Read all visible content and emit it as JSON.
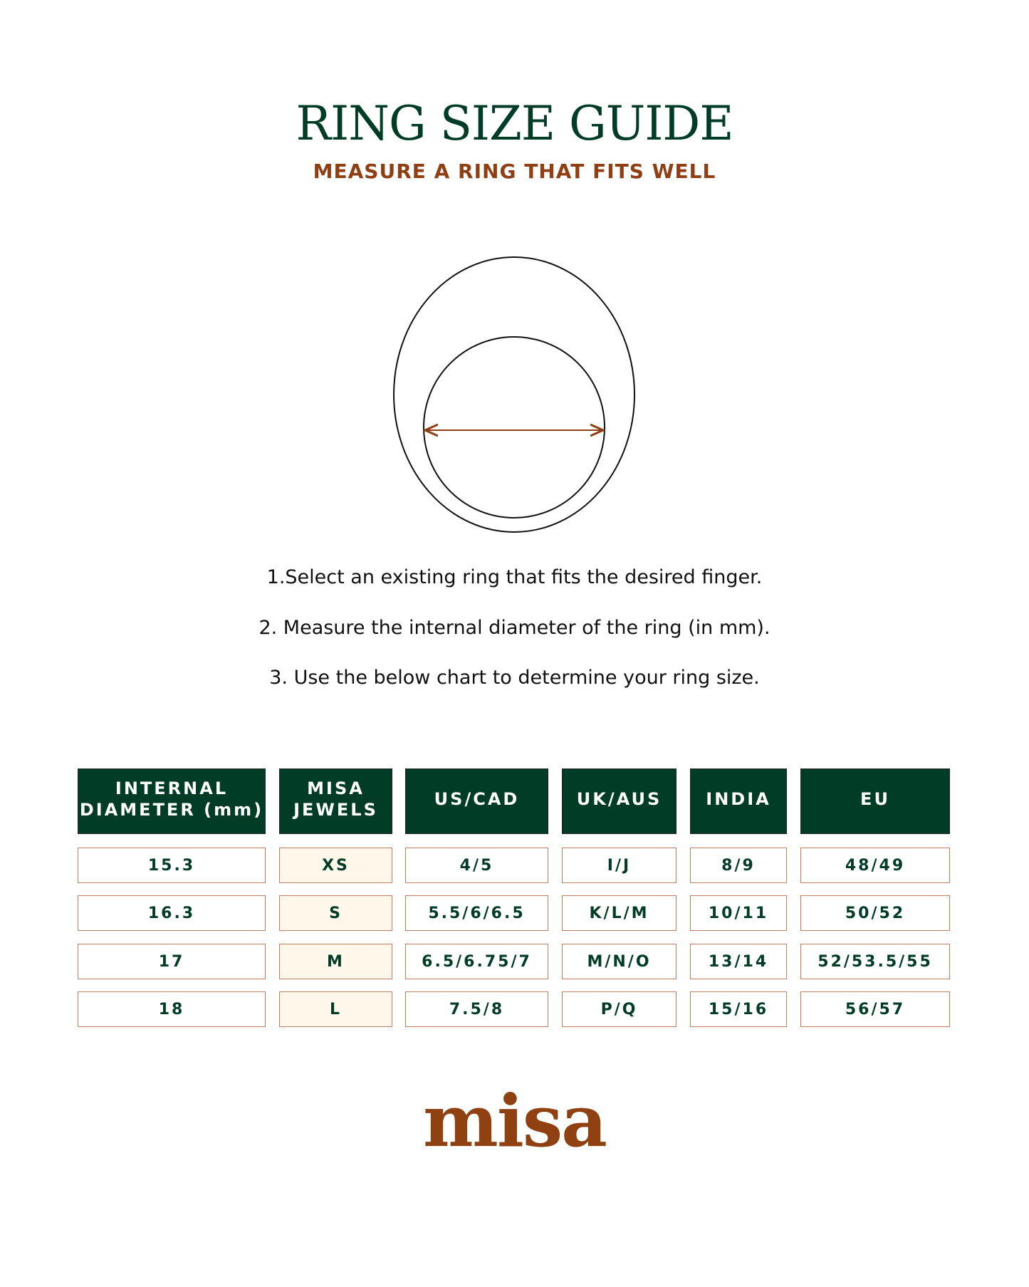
{
  "header": {
    "title": "RING SIZE GUIDE",
    "subtitle": "MEASURE A RING THAT FITS WELL"
  },
  "colors": {
    "green": "#003c26",
    "brown": "#8f3f13",
    "highlight": "#fff7ea"
  },
  "steps": [
    "1.Select an existing ring that fits the desired finger.",
    "2. Measure the internal diameter of the ring (in mm).",
    "3. Use the below chart to determine your ring size."
  ],
  "table": {
    "headers": [
      "INTERNAL DIAMETER (mm)",
      "MISA JEWELS",
      "US/CAD",
      "UK/AUS",
      "INDIA",
      "EU"
    ],
    "rows": [
      [
        "15.3",
        "XS",
        "4/5",
        "I/J",
        "8/9",
        "48/49"
      ],
      [
        "16.3",
        "S",
        "5.5/6/6.5",
        "K/L/M",
        "10/11",
        "50/52"
      ],
      [
        "17",
        "M",
        "6.5/6.75/7",
        "M/N/O",
        "13/14",
        "52/53.5/55"
      ],
      [
        "18",
        "L",
        "7.5/8",
        "P/Q",
        "15/16",
        "56/57"
      ]
    ]
  },
  "logo": {
    "text": "misa"
  }
}
